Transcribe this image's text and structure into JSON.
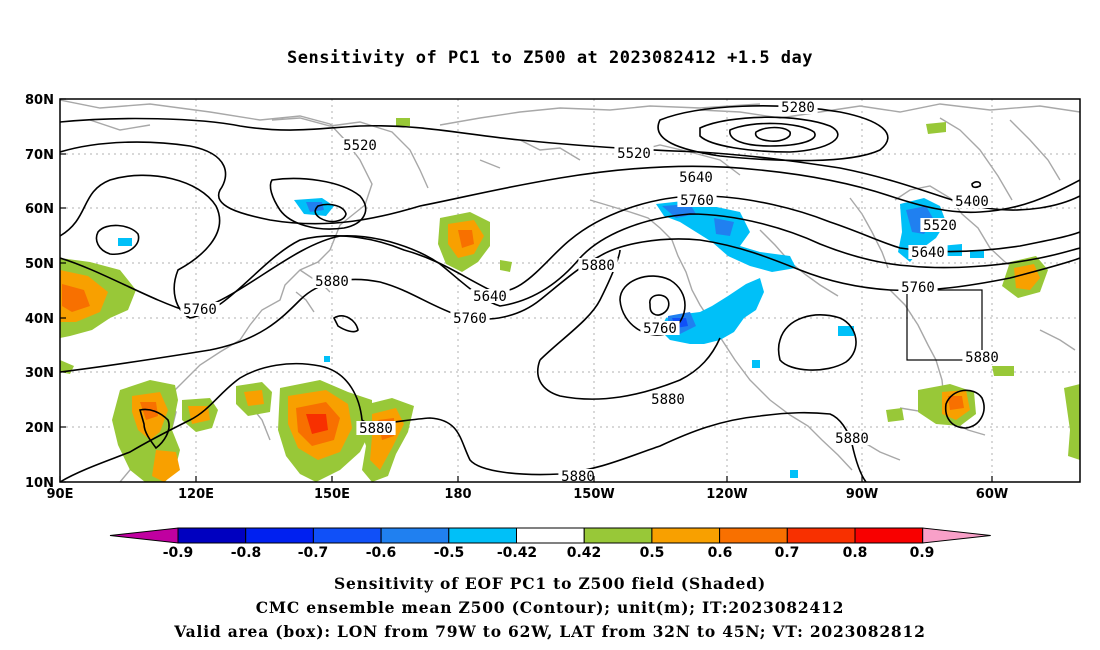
{
  "title": "Sensitivity of PC1 to Z500 at 2023082412 +1.5 day",
  "map": {
    "lat_labels": [
      "80N",
      "70N",
      "60N",
      "50N",
      "40N",
      "30N",
      "20N",
      "10N"
    ],
    "lon_labels": [
      "90E",
      "120E",
      "150E",
      "180",
      "150W",
      "120W",
      "90W",
      "60W"
    ],
    "contour_labels": [
      "5280",
      "5400",
      "5520",
      "5520",
      "5520",
      "5640",
      "5640",
      "5640",
      "5760",
      "5760",
      "5760",
      "5760",
      "5760",
      "5880",
      "5880",
      "5880",
      "5880",
      "5880",
      "5880",
      "5880"
    ],
    "valid_box": {
      "lon_range": [
        "79W",
        "62W"
      ],
      "lat_range": [
        "32N",
        "45N"
      ]
    }
  },
  "colorbar": {
    "labels": [
      "-0.9",
      "-0.8",
      "-0.7",
      "-0.6",
      "-0.5",
      "-0.42",
      "0.42",
      "0.5",
      "0.6",
      "0.7",
      "0.8",
      "0.9"
    ],
    "colors": [
      "#c000a0",
      "#0000c0",
      "#0020f0",
      "#1050f8",
      "#2080f0",
      "#00c0f8",
      "#ffffff",
      "#98c838",
      "#f8a000",
      "#f87000",
      "#f83000",
      "#f80000",
      "#f8a0c8"
    ]
  },
  "caption": {
    "line1": "Sensitivity of EOF PC1 to Z500 field (Shaded)",
    "line2": "CMC ensemble mean Z500 (Contour); unit(m); IT:2023082412",
    "line3": "Valid area (box): LON from 79W to 62W, LAT from 32N to 45N; VT: 2023082812"
  }
}
